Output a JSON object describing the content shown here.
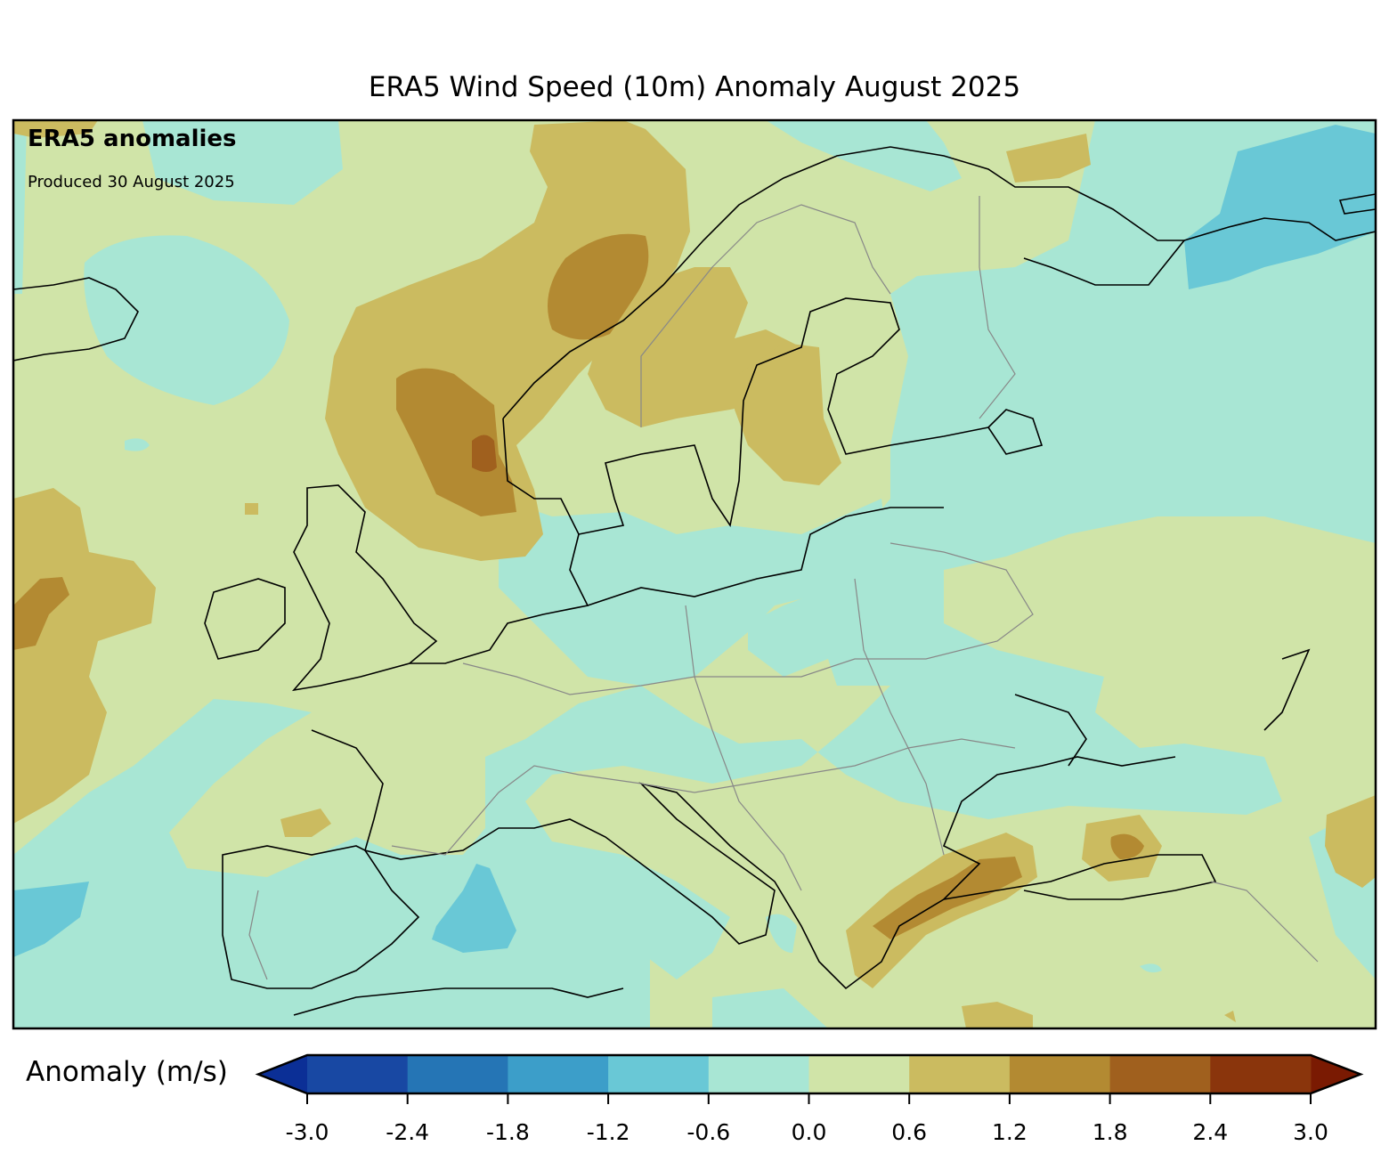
{
  "title": "ERA5 Wind Speed (10m) Anomaly August 2025",
  "map": {
    "badge": "ERA5 anomalies",
    "produced": "Produced 30 August 2025",
    "region": "Europe"
  },
  "colorbar": {
    "label": "Anomaly (m/s)",
    "ticks": [
      "-3.0",
      "-2.4",
      "-1.8",
      "-1.2",
      "-0.6",
      "0.0",
      "0.6",
      "1.2",
      "1.8",
      "2.4",
      "3.0"
    ],
    "levels": [
      -3.0,
      -2.4,
      -1.8,
      -1.2,
      -0.6,
      0.0,
      0.6,
      1.2,
      1.8,
      2.4,
      3.0
    ],
    "colors": [
      "#1848a3",
      "#2575b5",
      "#3c9ec9",
      "#69c8d6",
      "#a8e6d4",
      "#d0e4a8",
      "#cbbb60",
      "#b38a32",
      "#a0601e",
      "#8a350c"
    ],
    "extend_low_color": "#0b2f96",
    "extend_high_color": "#7a1a02"
  }
}
